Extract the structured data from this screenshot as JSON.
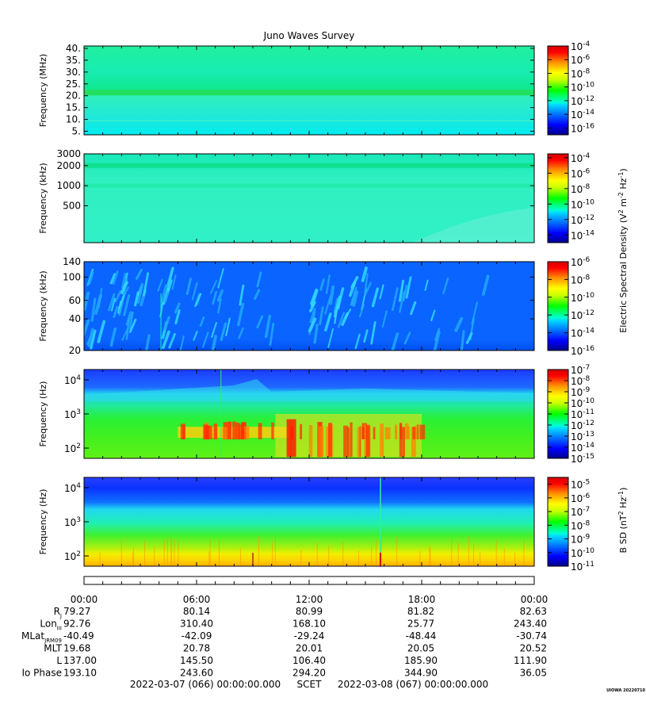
{
  "chart_data": {
    "type": "heatmap",
    "title": "Juno Waves Survey",
    "panels": [
      {
        "ylabel": "Frequency (MHz)",
        "yscale": "linear",
        "yticks": [
          "40.",
          "35.",
          "30.",
          "25.",
          "20.",
          "15.",
          "10.",
          "5."
        ],
        "ytick_values": [
          40,
          35,
          30,
          25,
          20,
          15,
          10,
          5
        ],
        "ylim": [
          3.5,
          41
        ],
        "colorbar_ticks": [
          {
            "base": "10",
            "exp": "-4",
            "v": -4
          },
          {
            "base": "10",
            "exp": "-6",
            "v": -6
          },
          {
            "base": "10",
            "exp": "-8",
            "v": -8
          },
          {
            "base": "10",
            "exp": "-10",
            "v": -10
          },
          {
            "base": "10",
            "exp": "-12",
            "v": -12
          },
          {
            "base": "10",
            "exp": "-14",
            "v": -14
          },
          {
            "base": "10",
            "exp": "-16",
            "v": -16
          }
        ],
        "colorbar_range": [
          -17,
          -4
        ]
      },
      {
        "ylabel": "Frequency (kHz)",
        "yscale": "log",
        "yticks": [
          "3000",
          "2000",
          "1000",
          "500"
        ],
        "ytick_values": [
          3000,
          2000,
          1000,
          500
        ],
        "ylim": [
          140,
          3000
        ],
        "colorbar_ticks": [
          {
            "base": "10",
            "exp": "-4",
            "v": -4
          },
          {
            "base": "10",
            "exp": "-6",
            "v": -6
          },
          {
            "base": "10",
            "exp": "-8",
            "v": -8
          },
          {
            "base": "10",
            "exp": "-10",
            "v": -10
          },
          {
            "base": "10",
            "exp": "-12",
            "v": -12
          },
          {
            "base": "10",
            "exp": "-14",
            "v": -14
          }
        ],
        "colorbar_range": [
          -15,
          -3.5
        ]
      },
      {
        "ylabel": "Frequency (kHz)",
        "yscale": "log",
        "yticks": [
          "140",
          "100",
          "60",
          "40",
          "20"
        ],
        "ytick_values": [
          140,
          100,
          60,
          40,
          20
        ],
        "ylim": [
          20,
          140
        ],
        "colorbar_ticks": [
          {
            "base": "10",
            "exp": "-6",
            "v": -6
          },
          {
            "base": "10",
            "exp": "-8",
            "v": -8
          },
          {
            "base": "10",
            "exp": "-10",
            "v": -10
          },
          {
            "base": "10",
            "exp": "-12",
            "v": -12
          },
          {
            "base": "10",
            "exp": "-14",
            "v": -14
          },
          {
            "base": "10",
            "exp": "-16",
            "v": -16
          }
        ],
        "colorbar_range": [
          -16,
          -6
        ]
      },
      {
        "ylabel": "Frequency (Hz)",
        "yscale": "log",
        "yticks": [
          {
            "base": "10",
            "exp": "4",
            "v": 10000
          },
          {
            "base": "10",
            "exp": "3",
            "v": 1000
          },
          {
            "base": "10",
            "exp": "2",
            "v": 100
          }
        ],
        "ylim": [
          50,
          20000
        ],
        "colorbar_ticks": [
          {
            "base": "10",
            "exp": "-7",
            "v": -7
          },
          {
            "base": "10",
            "exp": "-8",
            "v": -8
          },
          {
            "base": "10",
            "exp": "-9",
            "v": -9
          },
          {
            "base": "10",
            "exp": "-10",
            "v": -10
          },
          {
            "base": "10",
            "exp": "-11",
            "v": -11
          },
          {
            "base": "10",
            "exp": "-12",
            "v": -12
          },
          {
            "base": "10",
            "exp": "-13",
            "v": -13
          },
          {
            "base": "10",
            "exp": "-14",
            "v": -14
          },
          {
            "base": "10",
            "exp": "-15",
            "v": -15
          }
        ],
        "colorbar_range": [
          -15,
          -7
        ]
      },
      {
        "ylabel": "Frequency (Hz)",
        "yscale": "log",
        "yticks": [
          {
            "base": "10",
            "exp": "4",
            "v": 10000
          },
          {
            "base": "10",
            "exp": "3",
            "v": 1000
          },
          {
            "base": "10",
            "exp": "2",
            "v": 100
          }
        ],
        "ylim": [
          50,
          20000
        ],
        "colorbar_ticks": [
          {
            "base": "10",
            "exp": "-5",
            "v": -5
          },
          {
            "base": "10",
            "exp": "-6",
            "v": -6
          },
          {
            "base": "10",
            "exp": "-7",
            "v": -7
          },
          {
            "base": "10",
            "exp": "-8",
            "v": -8
          },
          {
            "base": "10",
            "exp": "-9",
            "v": -9
          },
          {
            "base": "10",
            "exp": "-10",
            "v": -10
          },
          {
            "base": "10",
            "exp": "-11",
            "v": -11
          }
        ],
        "colorbar_range": [
          -11,
          -4.5
        ]
      }
    ],
    "colorbar_labels": {
      "electric": {
        "text": "Electric Spectral Density (V",
        "sup1": "2",
        "mid": " m",
        "sup2": "-2",
        "mid2": " Hz",
        "sup3": "-1",
        "end": ")"
      },
      "magnetic": {
        "text": "B SD (nT",
        "sup1": "2",
        "mid": " Hz",
        "sup3": "-1",
        "end": ")"
      }
    },
    "x": {
      "tick_labels": [
        "00:00",
        "06:00",
        "12:00",
        "18:00",
        "00:00"
      ],
      "range_hours": [
        0,
        24
      ]
    },
    "ephemeris": {
      "rows": [
        {
          "label": "R",
          "sub": "J",
          "values": [
            "79.27",
            "80.14",
            "80.99",
            "81.82",
            "82.63"
          ]
        },
        {
          "label": "Lon",
          "sub": "III",
          "values": [
            "92.76",
            "310.40",
            "168.10",
            "25.77",
            "243.40"
          ]
        },
        {
          "label": "MLat",
          "sub": "JRM09",
          "values": [
            "-40.49",
            "-42.09",
            "-29.24",
            "-48.44",
            "-30.74"
          ]
        },
        {
          "label": "MLT",
          "sub": "",
          "values": [
            "19.68",
            "20.78",
            "20.01",
            "20.05",
            "20.52"
          ]
        },
        {
          "label": "L",
          "sub": "",
          "values": [
            "137.00",
            "145.50",
            "106.40",
            "185.90",
            "111.90"
          ]
        },
        {
          "label": "Io Phase",
          "sub": "",
          "values": [
            "193.10",
            "243.60",
            "294.20",
            "344.90",
            "36.05"
          ]
        }
      ]
    },
    "scet_start": "2022-03-07 (066) 00:00:00.000",
    "scet_label": "SCET",
    "scet_end": "2022-03-08 (067) 00:00:00.000",
    "version_tag": "UIOWA 20220710"
  }
}
